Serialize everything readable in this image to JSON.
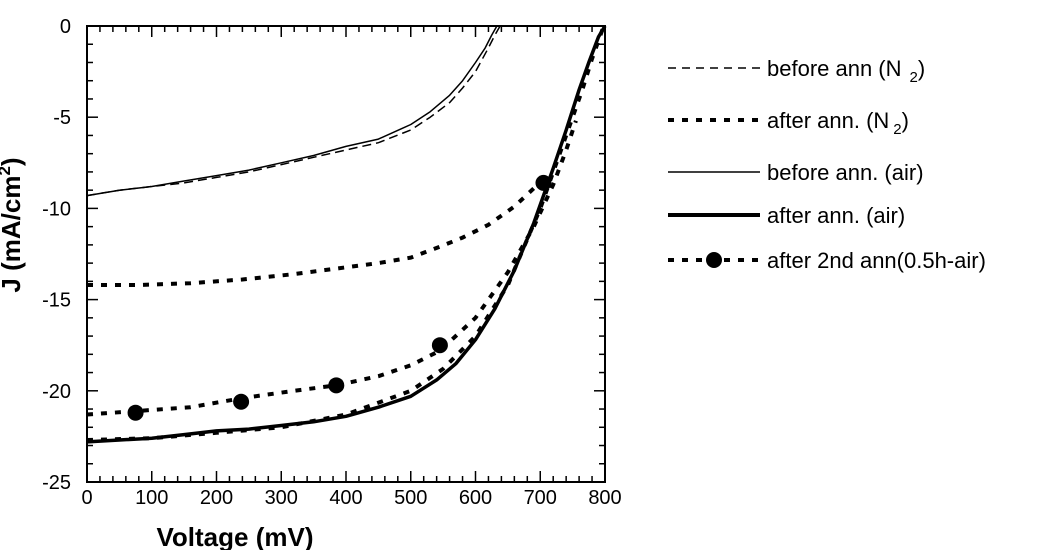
{
  "chart_data": {
    "type": "line",
    "xlabel": "Voltage (mV)",
    "ylabel": "J (mA/cm",
    "ylabel_sup": "2",
    "ylabel_close": ")",
    "xlim": [
      0,
      800
    ],
    "ylim": [
      -25,
      0
    ],
    "xticks": [
      "0",
      "100",
      "200",
      "300",
      "400",
      "500",
      "600",
      "700",
      "800"
    ],
    "yticks": [
      "0",
      "-5",
      "-10",
      "-15",
      "-20",
      "-25"
    ],
    "grid": false,
    "legend_position": "right",
    "series": [
      {
        "name": "before ann (N",
        "name_sub": "2",
        "name_close": ")",
        "style": "dashed-thin",
        "x": [
          0,
          50,
          100,
          150,
          200,
          250,
          300,
          350,
          400,
          450,
          500,
          530,
          560,
          580,
          600,
          620,
          630,
          638
        ],
        "y": [
          -9.3,
          -9.0,
          -8.8,
          -8.6,
          -8.3,
          -8.0,
          -7.6,
          -7.2,
          -6.8,
          -6.4,
          -5.7,
          -5.0,
          -4.2,
          -3.4,
          -2.5,
          -1.2,
          -0.5,
          0
        ]
      },
      {
        "name": "after ann. (N",
        "name_sub": "2",
        "name_close": ")",
        "style": "dashed-thick",
        "x": [
          0,
          100,
          200,
          300,
          400,
          500,
          550,
          600,
          650,
          700,
          730,
          750,
          765,
          780,
          790,
          798
        ],
        "y": [
          -22.7,
          -22.6,
          -22.3,
          -22.0,
          -21.3,
          -20.0,
          -18.8,
          -17.0,
          -14.2,
          -10.0,
          -7.0,
          -5.0,
          -3.5,
          -1.8,
          -0.8,
          0
        ]
      },
      {
        "name": "before ann. (air)",
        "style": "solid-thin",
        "x": [
          0,
          50,
          100,
          150,
          200,
          250,
          300,
          350,
          400,
          450,
          500,
          530,
          560,
          580,
          600,
          615,
          625,
          633
        ],
        "y": [
          -9.3,
          -9.0,
          -8.8,
          -8.5,
          -8.2,
          -7.9,
          -7.5,
          -7.1,
          -6.6,
          -6.2,
          -5.4,
          -4.7,
          -3.8,
          -3.0,
          -2.0,
          -1.2,
          -0.5,
          0
        ]
      },
      {
        "name": "after ann. (air)",
        "style": "solid-thick",
        "x": [
          0,
          50,
          100,
          150,
          200,
          250,
          300,
          350,
          400,
          450,
          500,
          540,
          570,
          600,
          630,
          660,
          690,
          720,
          740,
          760,
          775,
          790,
          800
        ],
        "y": [
          -22.8,
          -22.7,
          -22.6,
          -22.4,
          -22.2,
          -22.1,
          -21.9,
          -21.7,
          -21.4,
          -20.9,
          -20.3,
          -19.4,
          -18.5,
          -17.2,
          -15.5,
          -13.4,
          -10.8,
          -7.8,
          -5.7,
          -3.5,
          -2.0,
          -0.6,
          0
        ]
      },
      {
        "name": "after 2nd ann(0.5h-air)",
        "style": "dashed-dots",
        "x": [
          0,
          80,
          160,
          240,
          320,
          385,
          450,
          500,
          545,
          580,
          620,
          660,
          690,
          705
        ],
        "y": [
          -14.2,
          -14.2,
          -14.1,
          -13.9,
          -13.6,
          -13.3,
          -13.0,
          -12.7,
          -12.1,
          -11.6,
          -10.9,
          -9.9,
          -8.9,
          -8.1
        ],
        "markers_x": [
          75,
          238,
          385,
          545,
          705
        ],
        "markers_y": [
          -21.2,
          -20.6,
          -19.7,
          -17.5,
          -8.6
        ]
      }
    ],
    "extra_curve": {
      "style": "dashed-thick",
      "x": [
        0,
        80,
        160,
        240,
        320,
        385,
        450,
        500,
        545,
        600,
        650,
        690,
        720,
        740,
        755
      ],
      "y": [
        -21.3,
        -21.1,
        -20.9,
        -20.4,
        -20.0,
        -19.7,
        -19.2,
        -18.6,
        -17.8,
        -16.0,
        -13.5,
        -11.0,
        -8.7,
        -6.8,
        -5.2
      ]
    }
  }
}
